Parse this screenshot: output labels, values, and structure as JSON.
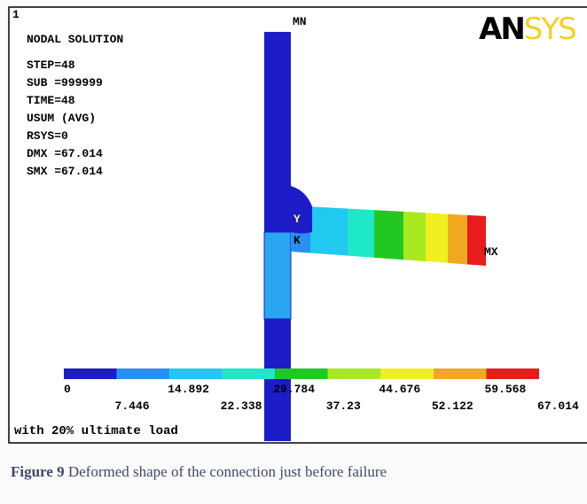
{
  "header": {
    "index": "1",
    "title": "NODAL SOLUTION",
    "logo_a": "AN",
    "logo_b": "SYS"
  },
  "info": [
    "STEP=48",
    "SUB =999999",
    "TIME=48",
    "USUM     (AVG)",
    "RSYS=0",
    "DMX =67.014",
    "SMX =67.014"
  ],
  "markers": {
    "min": "MN",
    "max": "MX",
    "y": "Y",
    "k": "K"
  },
  "legend": {
    "labels": [
      "0",
      "7.446",
      "14.892",
      "22.338",
      "29.784",
      "37.23",
      "44.676",
      "52.122",
      "59.568",
      "67.014"
    ]
  },
  "note": "with 20% ultimate load",
  "caption": {
    "label": "Figure 9",
    "text": "Deformed  shape of the connection just before failure"
  }
}
